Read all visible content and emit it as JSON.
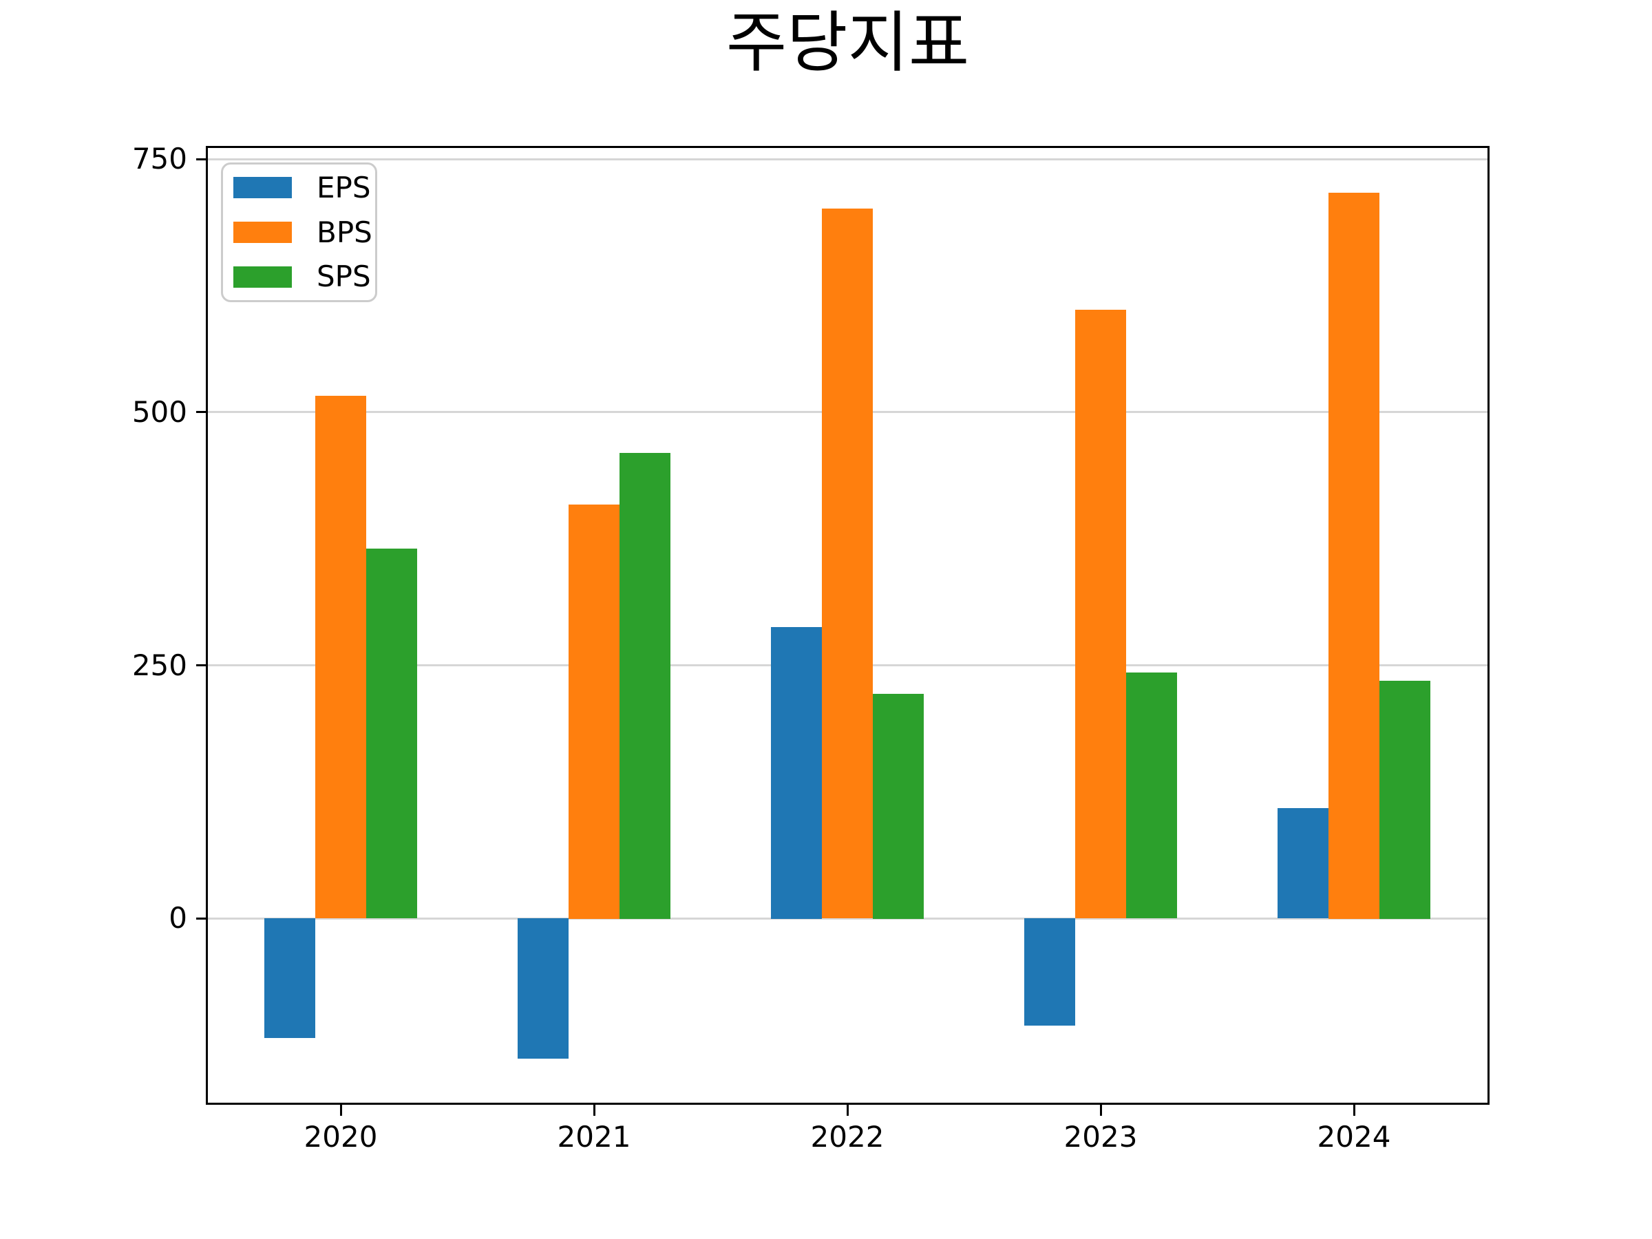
{
  "title": "주당지표",
  "chart_data": {
    "type": "bar",
    "title": "주당지표",
    "categories": [
      "2020",
      "2021",
      "2022",
      "2023",
      "2024"
    ],
    "series": [
      {
        "name": "EPS",
        "color": "#1f77b4",
        "values": [
          -118,
          -139,
          288,
          -106,
          109
        ]
      },
      {
        "name": "BPS",
        "color": "#ff7f0e",
        "values": [
          516,
          409,
          701,
          601,
          717
        ]
      },
      {
        "name": "SPS",
        "color": "#2ca02c",
        "values": [
          365,
          460,
          222,
          243,
          235
        ]
      }
    ],
    "xlabel": "",
    "ylabel": "",
    "yticks": [
      0,
      250,
      500,
      750
    ],
    "ylim": [
      -182,
      761
    ],
    "grid": "horizontal",
    "legend_position": "upper-left",
    "bar_width_fraction": 0.2
  },
  "colors": {
    "background": "#ffffff",
    "spine": "#000000",
    "gridline": "#d6d6d6",
    "legend_border": "#cccccc",
    "text": "#000000"
  }
}
